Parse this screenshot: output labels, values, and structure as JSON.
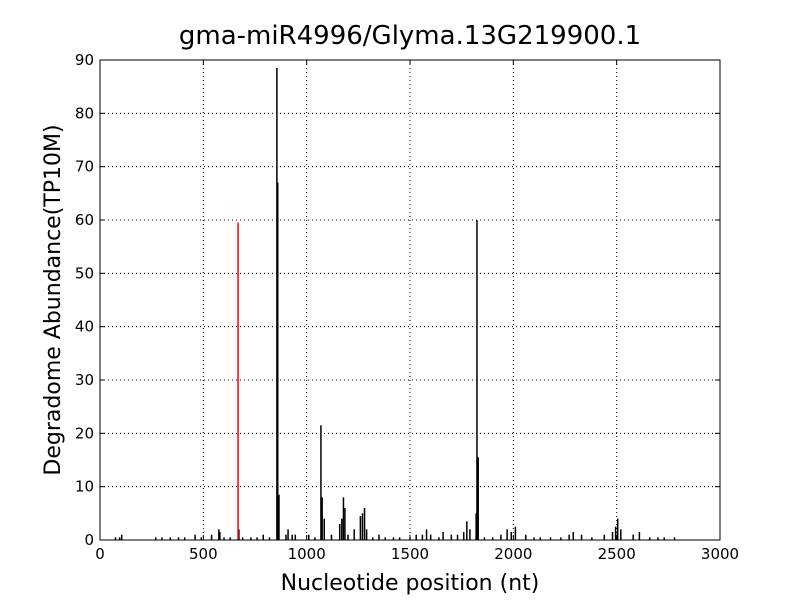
{
  "chart_data": {
    "type": "stem",
    "title": "gma-miR4996/Glyma.13G219900.1",
    "xlabel": "Nucleotide position (nt)",
    "ylabel": "Degradome Abundance(TP10M)",
    "xlim": [
      0,
      3000
    ],
    "xticks": [
      0,
      500,
      1000,
      1500,
      2000,
      2500,
      3000
    ],
    "ylim": [
      0,
      90
    ],
    "yticks": [
      0,
      10,
      20,
      30,
      40,
      50,
      60,
      70,
      80,
      90
    ],
    "grid": true,
    "series": [
      {
        "color": "#000000",
        "x": [
          75,
          95,
          105,
          270,
          300,
          340,
          380,
          410,
          460,
          490,
          540,
          575,
          580,
          600,
          630,
          672,
          690,
          730,
          760,
          790,
          820,
          856,
          860,
          866,
          900,
          910,
          930,
          945,
          1010,
          1040,
          1069,
          1075,
          1085,
          1120,
          1160,
          1170,
          1178,
          1185,
          1200,
          1230,
          1260,
          1270,
          1280,
          1290,
          1320,
          1350,
          1380,
          1420,
          1450,
          1500,
          1530,
          1560,
          1580,
          1600,
          1640,
          1660,
          1700,
          1730,
          1760,
          1775,
          1790,
          1820,
          1824,
          1830,
          1860,
          1900,
          1940,
          1970,
          1990,
          2010,
          2060,
          2100,
          2130,
          2180,
          2230,
          2270,
          2290,
          2330,
          2380,
          2440,
          2480,
          2495,
          2505,
          2520,
          2580,
          2610,
          2660,
          2700,
          2730,
          2780
        ],
        "values": [
          0.5,
          0.5,
          1,
          0.5,
          0.5,
          0.5,
          0.5,
          0.5,
          1,
          0.5,
          1,
          2,
          1.5,
          0.5,
          0.5,
          2,
          0.5,
          0.5,
          0.5,
          1,
          0.5,
          88.5,
          67,
          8.5,
          1,
          2,
          1,
          1,
          1,
          0.5,
          21.5,
          8,
          4,
          1,
          3,
          4,
          8,
          6,
          1,
          2,
          4.5,
          5,
          6,
          2,
          0.5,
          1,
          0.5,
          0.5,
          0.5,
          0.5,
          1,
          1,
          2,
          1,
          0.5,
          1.5,
          1,
          1,
          1.5,
          3.5,
          2,
          5,
          60,
          15.5,
          0.5,
          0.5,
          1,
          2,
          1.5,
          2.5,
          1,
          0.5,
          0.5,
          0.5,
          0.5,
          1,
          1.5,
          1,
          0.5,
          1,
          1.5,
          2.5,
          4,
          2,
          1,
          1.5,
          0.5,
          0.5,
          0.5,
          0.5
        ]
      },
      {
        "color": "#ff0000",
        "x": [
          668
        ],
        "values": [
          59.5
        ]
      }
    ]
  }
}
